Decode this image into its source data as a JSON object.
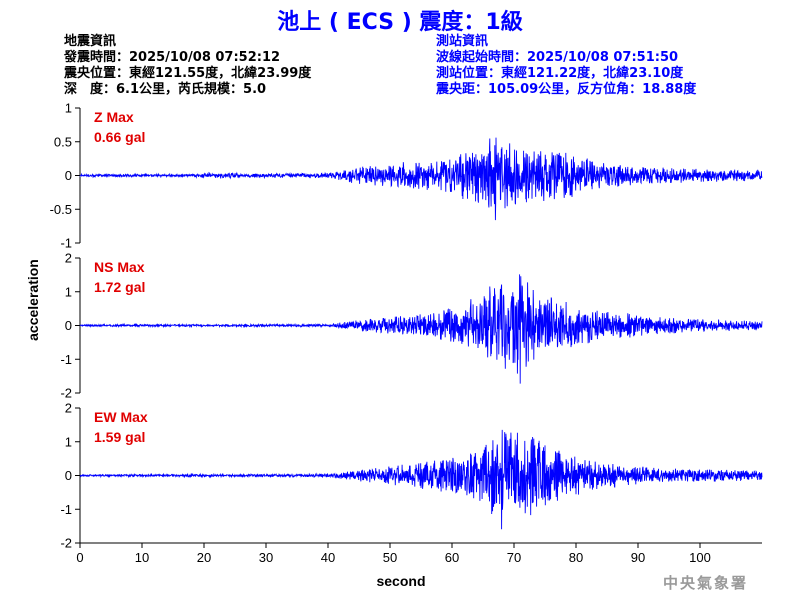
{
  "title": "池上 ( ECS ) 震度：1級",
  "quake_info": {
    "heading": "地震資訊",
    "lines": [
      "發震時間：2025/10/08 07:52:12",
      "震央位置：東經121.55度，北緯23.99度",
      "深　度：6.1公里，芮氏規模：5.0"
    ]
  },
  "station_info": {
    "heading": "測站資訊",
    "lines": [
      "波線起始時間：2025/10/08 07:51:50",
      "測站位置：東經121.22度，北緯23.10度",
      "震央距：105.09公里，反方位角：18.88度"
    ]
  },
  "credit": "中央氣象署",
  "colors": {
    "waveform": "#0000ff",
    "max_label": "#e00000",
    "title": "#0000ff"
  },
  "chart_data": {
    "type": "line",
    "xlabel": "second",
    "ylabel": "acceleration",
    "xlim": [
      0,
      110
    ],
    "x_ticks": [
      0,
      10,
      20,
      30,
      40,
      50,
      60,
      70,
      80,
      90,
      100
    ],
    "panels": [
      {
        "name": "Z",
        "max_label": "Z Max",
        "max_value": "0.66 gal",
        "ylim": [
          -1,
          1
        ],
        "y_ticks": [
          -1,
          -0.5,
          0,
          0.5,
          1
        ],
        "peak": 0.66,
        "envelope": [
          [
            0,
            0.02
          ],
          [
            18,
            0.02
          ],
          [
            20,
            0.05
          ],
          [
            23,
            0.05
          ],
          [
            26,
            0.03
          ],
          [
            40,
            0.04
          ],
          [
            44,
            0.12
          ],
          [
            50,
            0.18
          ],
          [
            58,
            0.26
          ],
          [
            63,
            0.4
          ],
          [
            67,
            0.62
          ],
          [
            70,
            0.45
          ],
          [
            74,
            0.4
          ],
          [
            77,
            0.42
          ],
          [
            80,
            0.3
          ],
          [
            85,
            0.18
          ],
          [
            92,
            0.13
          ],
          [
            100,
            0.1
          ],
          [
            110,
            0.09
          ]
        ]
      },
      {
        "name": "NS",
        "max_label": "NS Max",
        "max_value": "1.72 gal",
        "ylim": [
          -2,
          2
        ],
        "y_ticks": [
          -2,
          -1,
          0,
          1,
          2
        ],
        "peak": 1.72,
        "envelope": [
          [
            0,
            0.03
          ],
          [
            40,
            0.04
          ],
          [
            44,
            0.15
          ],
          [
            50,
            0.25
          ],
          [
            57,
            0.4
          ],
          [
            63,
            0.8
          ],
          [
            66,
            1.2
          ],
          [
            69,
            1.3
          ],
          [
            71,
            1.6
          ],
          [
            74,
            1.0
          ],
          [
            77,
            0.8
          ],
          [
            80,
            0.6
          ],
          [
            85,
            0.45
          ],
          [
            92,
            0.28
          ],
          [
            100,
            0.2
          ],
          [
            110,
            0.15
          ]
        ]
      },
      {
        "name": "EW",
        "max_label": "EW Max",
        "max_value": "1.59 gal",
        "ylim": [
          -2,
          2
        ],
        "y_ticks": [
          -2,
          -1,
          0,
          1,
          2
        ],
        "peak": 1.59,
        "envelope": [
          [
            0,
            0.03
          ],
          [
            40,
            0.05
          ],
          [
            44,
            0.15
          ],
          [
            50,
            0.28
          ],
          [
            57,
            0.45
          ],
          [
            62,
            0.7
          ],
          [
            65,
            0.9
          ],
          [
            68,
            1.5
          ],
          [
            72,
            1.3
          ],
          [
            75,
            1.0
          ],
          [
            78,
            0.7
          ],
          [
            82,
            0.5
          ],
          [
            88,
            0.32
          ],
          [
            95,
            0.22
          ],
          [
            110,
            0.15
          ]
        ]
      }
    ]
  }
}
